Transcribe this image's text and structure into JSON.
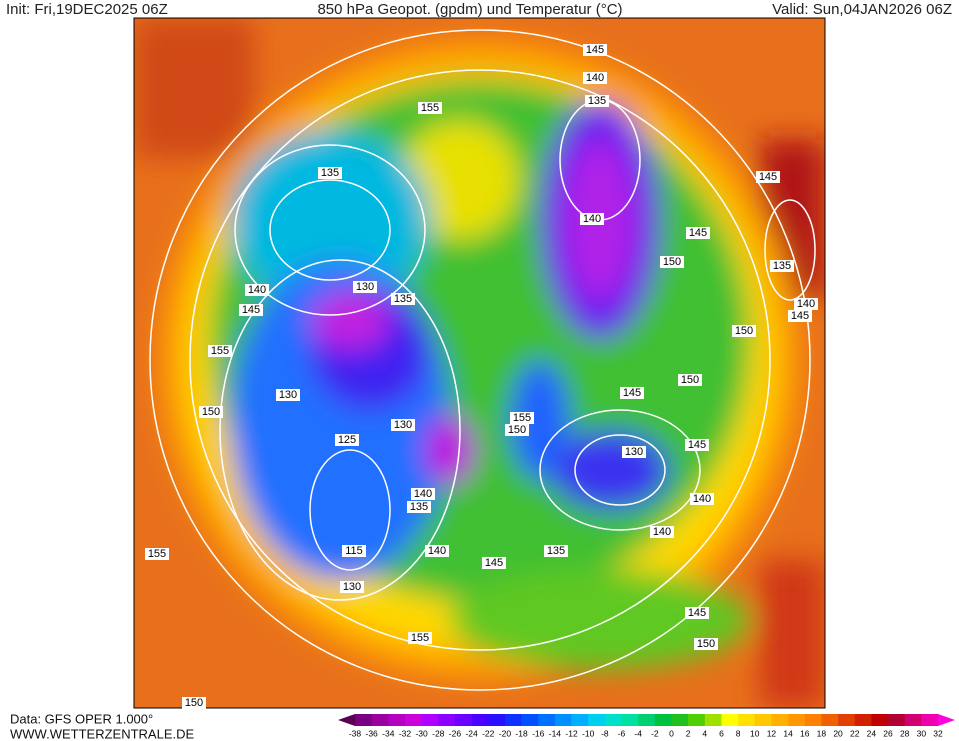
{
  "header": {
    "init": "Init: Fri,19DEC2025 06Z",
    "title": "850 hPa Geopot. (gpdm) und Temperatur (°C)",
    "valid": "Valid: Sun,04JAN2026 06Z"
  },
  "footer": {
    "data": "Data: GFS OPER 1.000°",
    "site": "WWW.WETTERZENTRALE.DE"
  },
  "map": {
    "contour_labels": [
      "145",
      "140",
      "135",
      "155",
      "135",
      "145",
      "140",
      "145",
      "150",
      "135",
      "130",
      "135",
      "140",
      "145",
      "155",
      "140",
      "145",
      "150",
      "150",
      "145",
      "130",
      "150",
      "155",
      "150",
      "130",
      "125",
      "145",
      "130",
      "140",
      "135",
      "140",
      "140",
      "135",
      "140",
      "145",
      "115",
      "130",
      "155",
      "145",
      "155",
      "150",
      "150"
    ]
  },
  "colorbar": {
    "ticks": [
      -38,
      -36,
      -34,
      -32,
      -30,
      -28,
      -26,
      -24,
      -22,
      -20,
      -18,
      -16,
      -14,
      -12,
      -10,
      -8,
      -6,
      -4,
      -2,
      0,
      2,
      4,
      6,
      8,
      10,
      12,
      14,
      16,
      18,
      20,
      22,
      24,
      26,
      28,
      30,
      32
    ],
    "colors": [
      "#5a0050",
      "#7a0082",
      "#9a009e",
      "#b400c0",
      "#cc00dc",
      "#b000ff",
      "#8c00ff",
      "#6a00ff",
      "#4b00ff",
      "#2a10ff",
      "#1030ff",
      "#0050ff",
      "#0070ff",
      "#0090ff",
      "#00b0ff",
      "#00d0f0",
      "#00e0c8",
      "#00e0a0",
      "#00d070",
      "#00c040",
      "#20c020",
      "#50d000",
      "#a0e000",
      "#ffff00",
      "#ffe000",
      "#ffc800",
      "#ffb000",
      "#ff9800",
      "#ff8000",
      "#f06000",
      "#e04000",
      "#d02000",
      "#c00000",
      "#b00030",
      "#d00070",
      "#f000b0",
      "#ff00e0"
    ]
  }
}
